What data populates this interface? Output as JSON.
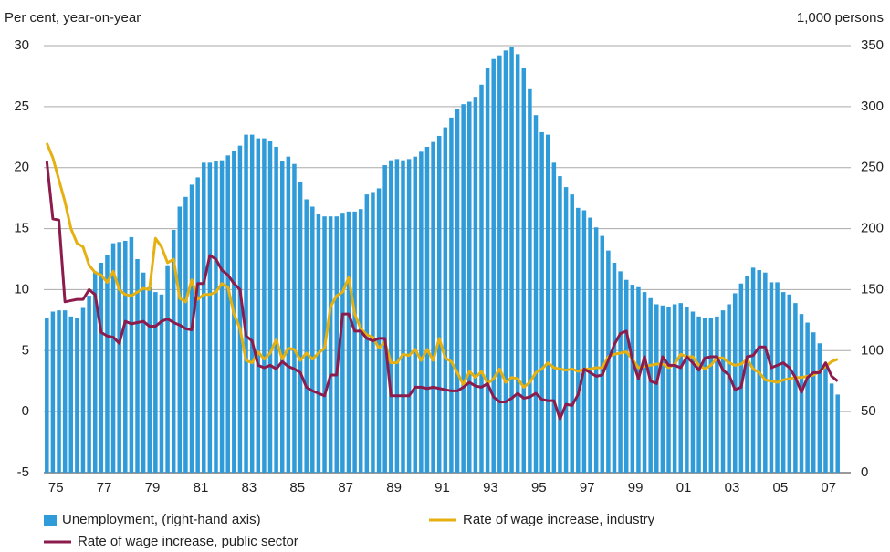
{
  "chart_data": {
    "type": "bar",
    "title_left": "Per cent, year-on-year",
    "title_right": "1,000 persons",
    "categories": [
      null,
      null,
      "75",
      null,
      null,
      null,
      null,
      null,
      null,
      null,
      "77",
      null,
      null,
      null,
      null,
      null,
      null,
      null,
      "79",
      null,
      null,
      null,
      null,
      null,
      null,
      null,
      "81",
      null,
      null,
      null,
      null,
      null,
      null,
      null,
      "83",
      null,
      null,
      null,
      null,
      null,
      null,
      null,
      "85",
      null,
      null,
      null,
      null,
      null,
      null,
      null,
      "87",
      null,
      null,
      null,
      null,
      null,
      null,
      null,
      "89",
      null,
      null,
      null,
      null,
      null,
      null,
      null,
      "91",
      null,
      null,
      null,
      null,
      null,
      null,
      null,
      "93",
      null,
      null,
      null,
      null,
      null,
      null,
      null,
      "95",
      null,
      null,
      null,
      null,
      null,
      null,
      null,
      "97",
      null,
      null,
      null,
      null,
      null,
      null,
      null,
      "99",
      null,
      null,
      null,
      null,
      null,
      null,
      null,
      "01",
      null,
      null,
      null,
      null,
      null,
      null,
      null,
      "03",
      null,
      null,
      null,
      null,
      null,
      null,
      null,
      "05",
      null,
      null,
      null,
      null,
      null,
      null,
      null,
      "07",
      null
    ],
    "series": [
      {
        "name": "Unemployment, (right-hand axis)",
        "type": "bar",
        "axis": "y2",
        "color": "#2f9bd8",
        "values": [
          127,
          132,
          133,
          133,
          128,
          127,
          135,
          145,
          165,
          172,
          178,
          188,
          189,
          190,
          193,
          175,
          164,
          152,
          148,
          146,
          170,
          199,
          218,
          226,
          236,
          242,
          254,
          254,
          255,
          256,
          260,
          264,
          268,
          277,
          277,
          274,
          274,
          272,
          267,
          255,
          259,
          253,
          238,
          224,
          218,
          212,
          210,
          210,
          210,
          213,
          214,
          214,
          216,
          228,
          230,
          233,
          252,
          256,
          257,
          256,
          257,
          259,
          263,
          267,
          271,
          276,
          283,
          291,
          298,
          302,
          304,
          308,
          318,
          332,
          339,
          342,
          346,
          349,
          343,
          332,
          315,
          293,
          279,
          277,
          254,
          243,
          234,
          228,
          217,
          215,
          209,
          201,
          194,
          182,
          172,
          165,
          158,
          154,
          152,
          148,
          143,
          138,
          137,
          136,
          138,
          139,
          136,
          132,
          128,
          127,
          127,
          128,
          133,
          138,
          147,
          155,
          161,
          168,
          166,
          164,
          156,
          156,
          148,
          146,
          139,
          130,
          123,
          115,
          106,
          87,
          73,
          64
        ]
      },
      {
        "name": "Rate of wage increase, industry",
        "type": "line",
        "color": "#e6b011",
        "values": [
          22,
          20.8,
          19,
          17.2,
          15,
          13.8,
          13.5,
          12,
          11.4,
          11.2,
          10.6,
          11.5,
          10,
          9.6,
          9.5,
          9.8,
          10.1,
          10,
          14.2,
          13.5,
          12.2,
          12.5,
          9.3,
          9,
          10.8,
          9.2,
          9.6,
          9.6,
          9.8,
          10.5,
          10.2,
          8,
          6.8,
          4.2,
          4,
          4.9,
          4.3,
          4.8,
          5.9,
          4.3,
          5.2,
          5.1,
          4.2,
          4.8,
          4.3,
          4.8,
          5.2,
          8.6,
          9.5,
          9.8,
          11,
          8,
          6.8,
          6.3,
          6.1,
          5.2,
          5.7,
          4,
          4,
          4.7,
          4.6,
          5.1,
          4.2,
          5.1,
          4.2,
          6,
          4.4,
          4.1,
          3.2,
          2.2,
          3.3,
          2.8,
          3.3,
          2.3,
          2.7,
          3.5,
          2.4,
          2.8,
          2.7,
          2,
          2.4,
          3.2,
          3.5,
          4,
          3.6,
          3.5,
          3.4,
          3.5,
          3.3,
          3.5,
          3.5,
          3.6,
          3.6,
          4.5,
          4.7,
          4.8,
          4.9,
          4.3,
          3.6,
          3.7,
          3.8,
          3.9,
          3.9,
          3.6,
          3.9,
          4.7,
          4.5,
          4.5,
          3.8,
          3.5,
          3.8,
          4.4,
          4.4,
          4,
          3.8,
          3.9,
          4.3,
          3.5,
          3.2,
          2.6,
          2.5,
          2.4,
          2.6,
          2.7,
          2.8,
          2.8,
          2.9,
          3,
          3.3,
          3.7,
          4.1,
          4.3
        ]
      },
      {
        "name": "Rate of wage increase, public sector",
        "type": "line",
        "color": "#8c1c4c",
        "values": [
          20.5,
          15.8,
          15.7,
          9,
          9.1,
          9.2,
          9.2,
          10,
          9.6,
          6.5,
          6.2,
          6.1,
          5.6,
          7.4,
          7.2,
          7.3,
          7.4,
          7,
          7,
          7.4,
          7.6,
          7.3,
          7.1,
          6.8,
          6.7,
          10.5,
          10.5,
          12.8,
          12.5,
          11.6,
          11.2,
          10.5,
          10,
          6.2,
          5.8,
          3.8,
          3.6,
          3.8,
          3.5,
          4.1,
          3.7,
          3.5,
          3.2,
          2,
          1.7,
          1.5,
          1.3,
          3,
          3,
          8,
          8,
          6.6,
          6.6,
          6,
          5.8,
          6,
          6,
          1.3,
          1.3,
          1.3,
          1.3,
          2,
          2,
          1.9,
          2,
          1.9,
          1.8,
          1.7,
          1.7,
          2,
          2.4,
          2.1,
          2,
          2.3,
          1.2,
          0.8,
          0.8,
          1.1,
          1.5,
          1.1,
          1.2,
          1.5,
          1,
          0.9,
          0.9,
          -0.6,
          0.6,
          0.5,
          1.4,
          3.5,
          3.2,
          2.9,
          3,
          4.2,
          5.5,
          6.4,
          6.6,
          4.2,
          2.7,
          4.5,
          2.5,
          2.3,
          4.5,
          3.8,
          3.8,
          3.6,
          4.5,
          4,
          3.4,
          4.4,
          4.5,
          4.5,
          3.4,
          3,
          1.8,
          2,
          4.5,
          4.6,
          5.3,
          5.3,
          3.6,
          3.8,
          4,
          3.6,
          2.8,
          1.6,
          2.8,
          3.2,
          3.2,
          4,
          2.9,
          2.5
        ]
      }
    ],
    "ylim": [
      -5,
      30
    ],
    "yticks": [
      -5,
      0,
      5,
      10,
      15,
      20,
      25,
      30
    ],
    "y2lim": [
      0,
      350
    ],
    "y2ticks": [
      0,
      50,
      100,
      150,
      200,
      250,
      300,
      350
    ],
    "grid": true,
    "legend": "bottom"
  }
}
